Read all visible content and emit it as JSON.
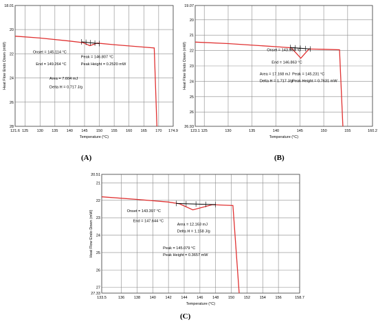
{
  "panels": [
    {
      "id": "A",
      "label": "(A)",
      "chart_data": {
        "type": "line",
        "xlabel": "Temperature (°C)",
        "ylabel": "Heat Flow Endo Down (mW)",
        "xlim": [
          121.6,
          174.9
        ],
        "ylim": [
          18.01,
          28
        ],
        "x_tick_labels": [
          "121.6",
          "125",
          "130",
          "135",
          "140",
          "145",
          "150",
          "155",
          "160",
          "165",
          "170",
          "174.9"
        ],
        "y_tick_labels": [
          "18.01",
          "20",
          "22",
          "24",
          "26",
          "28"
        ],
        "series": [
          {
            "values": [
              [
                121.6,
                20.55
              ],
              [
                130,
                20.7
              ],
              [
                140,
                20.95
              ],
              [
                144.5,
                21.08
              ],
              [
                146.8,
                21.33
              ],
              [
                149.3,
                21.12
              ],
              [
                155,
                21.25
              ],
              [
                165,
                21.45
              ],
              [
                168.5,
                21.52
              ],
              [
                169.4,
                28
              ]
            ]
          }
        ],
        "baseline": [
          [
            144.0,
            21.02
          ],
          [
            150.0,
            21.16
          ]
        ],
        "annotations": [
          {
            "text": "Onset = 145.114 °C",
            "x": 127.6,
            "y": 21.95
          },
          {
            "text": "End = 149.264 °C",
            "x": 128.6,
            "y": 22.95
          },
          {
            "text": "Peak = 146.807 °C",
            "x": 143.8,
            "y": 22.35
          },
          {
            "text": "Peak Height = 0.2520 mW",
            "x": 143.8,
            "y": 22.95
          },
          {
            "text": "Area = 7.604 mJ",
            "x": 133.2,
            "y": 24.15
          },
          {
            "text": "Delta H = 0.717 J/g",
            "x": 133.2,
            "y": 24.85
          }
        ]
      }
    },
    {
      "id": "B",
      "label": "(B)",
      "chart_data": {
        "type": "line",
        "xlabel": "Temperature (°C)",
        "ylabel": "Heat Flow Endo Down (mW)",
        "xlim": [
          123.1,
          160.2
        ],
        "ylim": [
          19.07,
          26.93
        ],
        "x_tick_labels": [
          "123.1",
          "125",
          "130",
          "135",
          "140",
          "145",
          "150",
          "155",
          "160.2"
        ],
        "y_tick_labels": [
          "19.07",
          "20",
          "21",
          "22",
          "23",
          "24",
          "25",
          "26",
          "26.93"
        ],
        "series": [
          {
            "values": [
              [
                123.1,
                21.45
              ],
              [
                130,
                21.55
              ],
              [
                140,
                21.75
              ],
              [
                143.2,
                21.82
              ],
              [
                145.2,
                22.5
              ],
              [
                146.9,
                21.9
              ],
              [
                150,
                21.92
              ],
              [
                153.3,
                21.95
              ],
              [
                154.0,
                26.93
              ]
            ]
          }
        ],
        "baseline": [
          [
            143.0,
            21.8
          ],
          [
            147.2,
            21.9
          ]
        ],
        "annotations": [
          {
            "text": "Onset = 143.963 °C",
            "x": 138.1,
            "y": 22.05
          },
          {
            "text": "End = 146.863 °C",
            "x": 139.1,
            "y": 22.85
          },
          {
            "text": "Area = 17.168 mJ",
            "x": 136.6,
            "y": 23.6
          },
          {
            "text": "Delta H = 1.717 J/g",
            "x": 136.6,
            "y": 24.05
          },
          {
            "text": "Peak = 145.231 °C",
            "x": 143.4,
            "y": 23.6
          },
          {
            "text": "Peak Height = 0.7631 mW",
            "x": 143.4,
            "y": 24.05
          }
        ]
      }
    },
    {
      "id": "C",
      "label": "(C)",
      "chart_data": {
        "type": "line",
        "xlabel": "Temperature (°C)",
        "ylabel": "Heat Flow Endo Down (mW)",
        "xlim": [
          133.5,
          158.7
        ],
        "ylim": [
          20.51,
          27.33
        ],
        "x_tick_labels": [
          "133.5",
          "136",
          "138",
          "140",
          "142",
          "144",
          "146",
          "148",
          "150",
          "152",
          "154",
          "156",
          "158.7"
        ],
        "y_tick_labels": [
          "20.51",
          "21",
          "22",
          "23",
          "24",
          "25",
          "26",
          "27",
          "27.33"
        ],
        "series": [
          {
            "values": [
              [
                133.5,
                21.8
              ],
              [
                138,
                21.95
              ],
              [
                142,
                22.1
              ],
              [
                143.4,
                22.2
              ],
              [
                145.1,
                22.55
              ],
              [
                147.6,
                22.25
              ],
              [
                149,
                22.28
              ],
              [
                150.2,
                22.3
              ],
              [
                151.0,
                27.33
              ]
            ]
          }
        ],
        "baseline": [
          [
            143.0,
            22.18
          ],
          [
            148.0,
            22.25
          ]
        ],
        "annotations": [
          {
            "text": "Onset = 143.397 °C",
            "x": 136.7,
            "y": 22.68
          },
          {
            "text": "End = 147.644 °C",
            "x": 137.5,
            "y": 23.25
          },
          {
            "text": "Area = 12.163 mJ",
            "x": 143.1,
            "y": 23.45
          },
          {
            "text": "Delta H = 1.158 J/g",
            "x": 143.1,
            "y": 23.85
          },
          {
            "text": "Peak = 145.079 °C",
            "x": 141.3,
            "y": 24.8
          },
          {
            "text": "Peak Height = 0.3657 mW",
            "x": 141.3,
            "y": 25.2
          }
        ]
      }
    }
  ],
  "colors": {
    "curve": "#e03030",
    "grid": "#8a8a8a",
    "baseline": "#000000"
  }
}
